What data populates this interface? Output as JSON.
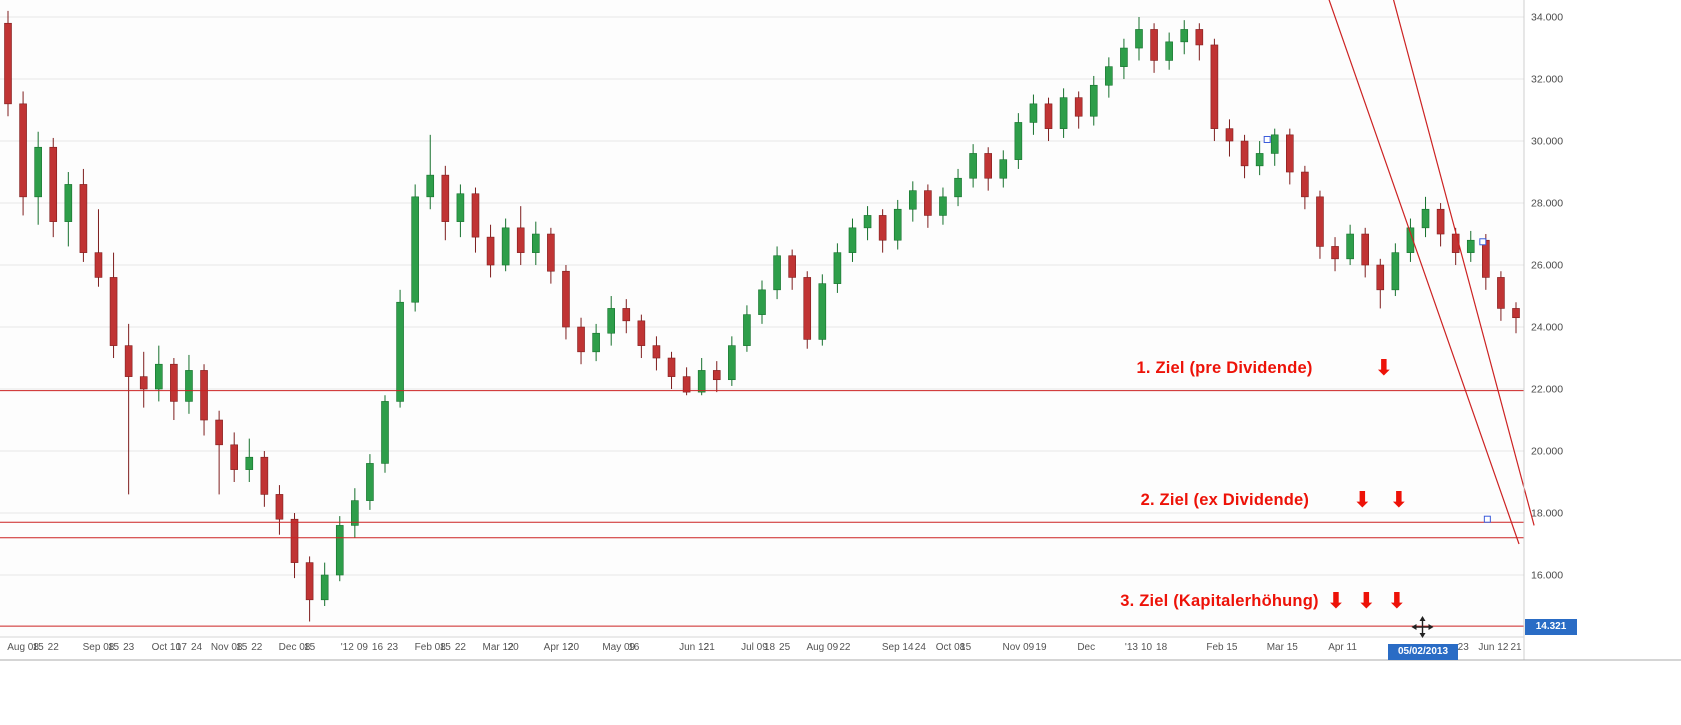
{
  "icons": {
    "down_arrow": "⬇"
  },
  "chart_data": {
    "type": "candlestick",
    "title": "",
    "ylim": [
      14.0,
      34.55
    ],
    "grid": "horizontal",
    "y_axis_side": "right",
    "y_ticks": [
      {
        "price": 34,
        "label": "34.000"
      },
      {
        "price": 32,
        "label": "32.000"
      },
      {
        "price": 30,
        "label": "30.000"
      },
      {
        "price": 28,
        "label": "28.000"
      },
      {
        "price": 26,
        "label": "26.000"
      },
      {
        "price": 24,
        "label": "24.000"
      },
      {
        "price": 22,
        "label": "22.000"
      },
      {
        "price": 20,
        "label": "20.000"
      },
      {
        "price": 18,
        "label": "18.000"
      },
      {
        "price": 16,
        "label": "16.000"
      }
    ],
    "x_ticks": [
      {
        "i": 1,
        "label": "Aug 08"
      },
      {
        "i": 2,
        "label": "15"
      },
      {
        "i": 3,
        "label": "22"
      },
      {
        "i": 6,
        "label": "Sep 08"
      },
      {
        "i": 7,
        "label": "15"
      },
      {
        "i": 8,
        "label": "23"
      },
      {
        "i": 10.5,
        "label": "Oct 10"
      },
      {
        "i": 11.5,
        "label": "17"
      },
      {
        "i": 12.5,
        "label": "24"
      },
      {
        "i": 14.5,
        "label": "Nov 08"
      },
      {
        "i": 15.5,
        "label": "15"
      },
      {
        "i": 16.5,
        "label": "22"
      },
      {
        "i": 19,
        "label": "Dec 08"
      },
      {
        "i": 20,
        "label": "15"
      },
      {
        "i": 22.5,
        "label": "'12"
      },
      {
        "i": 23.5,
        "label": "09"
      },
      {
        "i": 24.5,
        "label": "16"
      },
      {
        "i": 25.5,
        "label": "23"
      },
      {
        "i": 28,
        "label": "Feb 08"
      },
      {
        "i": 29,
        "label": "15"
      },
      {
        "i": 30,
        "label": "22"
      },
      {
        "i": 32.5,
        "label": "Mar 12"
      },
      {
        "i": 33.5,
        "label": "20"
      },
      {
        "i": 36.5,
        "label": "Apr 12"
      },
      {
        "i": 37.5,
        "label": "20"
      },
      {
        "i": 40.5,
        "label": "May 09"
      },
      {
        "i": 41.5,
        "label": "16"
      },
      {
        "i": 45.5,
        "label": "Jun 12"
      },
      {
        "i": 46.5,
        "label": "21"
      },
      {
        "i": 49.5,
        "label": "Jul 09"
      },
      {
        "i": 50.5,
        "label": "18"
      },
      {
        "i": 51.5,
        "label": "25"
      },
      {
        "i": 54,
        "label": "Aug 09"
      },
      {
        "i": 55.5,
        "label": "22"
      },
      {
        "i": 59,
        "label": "Sep 14"
      },
      {
        "i": 60.5,
        "label": "24"
      },
      {
        "i": 62.5,
        "label": "Oct 08"
      },
      {
        "i": 63.5,
        "label": "15"
      },
      {
        "i": 67,
        "label": "Nov 09"
      },
      {
        "i": 68.5,
        "label": "19"
      },
      {
        "i": 71.5,
        "label": "Dec"
      },
      {
        "i": 74.5,
        "label": "'13"
      },
      {
        "i": 75.5,
        "label": "10"
      },
      {
        "i": 76.5,
        "label": "18"
      },
      {
        "i": 80.5,
        "label": "Feb 15"
      },
      {
        "i": 84.5,
        "label": "Mar 15"
      },
      {
        "i": 88.5,
        "label": "Apr 11"
      },
      {
        "i": 96.5,
        "label": "23"
      },
      {
        "i": 98.5,
        "label": "Jun 12"
      },
      {
        "i": 100,
        "label": "21"
      }
    ],
    "candle_format": "[open, high, low, close], weekly, Aug 2011 - Jun 2013",
    "candles": [
      [
        33.8,
        34.2,
        30.8,
        31.2
      ],
      [
        31.2,
        31.6,
        27.6,
        28.2
      ],
      [
        28.2,
        30.3,
        27.3,
        29.8
      ],
      [
        29.8,
        30.1,
        26.9,
        27.4
      ],
      [
        27.4,
        29.0,
        26.6,
        28.6
      ],
      [
        28.6,
        29.1,
        26.1,
        26.4
      ],
      [
        26.4,
        27.8,
        25.3,
        25.6
      ],
      [
        25.6,
        26.4,
        23.0,
        23.4
      ],
      [
        23.4,
        24.1,
        18.6,
        22.4
      ],
      [
        22.4,
        23.2,
        21.4,
        22.0
      ],
      [
        22.0,
        23.4,
        21.6,
        22.8
      ],
      [
        22.8,
        23.0,
        21.0,
        21.6
      ],
      [
        21.6,
        23.1,
        21.2,
        22.6
      ],
      [
        22.6,
        22.8,
        20.5,
        21.0
      ],
      [
        21.0,
        21.3,
        18.6,
        20.2
      ],
      [
        20.2,
        20.6,
        19.0,
        19.4
      ],
      [
        19.4,
        20.4,
        19.0,
        19.8
      ],
      [
        19.8,
        20.0,
        18.2,
        18.6
      ],
      [
        18.6,
        18.9,
        17.3,
        17.8
      ],
      [
        17.8,
        18.0,
        15.9,
        16.4
      ],
      [
        16.4,
        16.6,
        14.5,
        15.2
      ],
      [
        15.2,
        16.4,
        15.0,
        16.0
      ],
      [
        16.0,
        17.9,
        15.8,
        17.6
      ],
      [
        17.6,
        18.8,
        17.2,
        18.4
      ],
      [
        18.4,
        19.9,
        18.1,
        19.6
      ],
      [
        19.6,
        21.8,
        19.3,
        21.6
      ],
      [
        21.6,
        25.2,
        21.4,
        24.8
      ],
      [
        24.8,
        28.6,
        24.5,
        28.2
      ],
      [
        28.2,
        30.2,
        27.8,
        28.9
      ],
      [
        28.9,
        29.2,
        26.8,
        27.4
      ],
      [
        27.4,
        28.6,
        26.9,
        28.3
      ],
      [
        28.3,
        28.5,
        26.4,
        26.9
      ],
      [
        26.9,
        27.3,
        25.6,
        26.0
      ],
      [
        26.0,
        27.5,
        25.8,
        27.2
      ],
      [
        27.2,
        27.9,
        26.0,
        26.4
      ],
      [
        26.4,
        27.4,
        26.0,
        27.0
      ],
      [
        27.0,
        27.2,
        25.4,
        25.8
      ],
      [
        25.8,
        26.0,
        23.6,
        24.0
      ],
      [
        24.0,
        24.3,
        22.8,
        23.2
      ],
      [
        23.2,
        24.1,
        22.9,
        23.8
      ],
      [
        23.8,
        25.0,
        23.4,
        24.6
      ],
      [
        24.6,
        24.9,
        23.8,
        24.2
      ],
      [
        24.2,
        24.4,
        23.0,
        23.4
      ],
      [
        23.4,
        23.7,
        22.6,
        23.0
      ],
      [
        23.0,
        23.2,
        22.0,
        22.4
      ],
      [
        22.4,
        22.7,
        21.8,
        21.9
      ],
      [
        21.9,
        23.0,
        21.8,
        22.6
      ],
      [
        22.6,
        22.9,
        21.9,
        22.3
      ],
      [
        22.3,
        23.7,
        22.1,
        23.4
      ],
      [
        23.4,
        24.7,
        23.2,
        24.4
      ],
      [
        24.4,
        25.5,
        24.1,
        25.2
      ],
      [
        25.2,
        26.6,
        24.9,
        26.3
      ],
      [
        26.3,
        26.5,
        25.2,
        25.6
      ],
      [
        25.6,
        25.8,
        23.3,
        23.6
      ],
      [
        23.6,
        25.7,
        23.4,
        25.4
      ],
      [
        25.4,
        26.7,
        25.1,
        26.4
      ],
      [
        26.4,
        27.5,
        26.1,
        27.2
      ],
      [
        27.2,
        27.9,
        26.8,
        27.6
      ],
      [
        27.6,
        27.8,
        26.4,
        26.8
      ],
      [
        26.8,
        28.1,
        26.5,
        27.8
      ],
      [
        27.8,
        28.7,
        27.4,
        28.4
      ],
      [
        28.4,
        28.6,
        27.2,
        27.6
      ],
      [
        27.6,
        28.5,
        27.3,
        28.2
      ],
      [
        28.2,
        29.1,
        27.9,
        28.8
      ],
      [
        28.8,
        29.9,
        28.5,
        29.6
      ],
      [
        29.6,
        29.8,
        28.4,
        28.8
      ],
      [
        28.8,
        29.7,
        28.5,
        29.4
      ],
      [
        29.4,
        30.9,
        29.1,
        30.6
      ],
      [
        30.6,
        31.5,
        30.2,
        31.2
      ],
      [
        31.2,
        31.4,
        30.0,
        30.4
      ],
      [
        30.4,
        31.7,
        30.1,
        31.4
      ],
      [
        31.4,
        31.6,
        30.4,
        30.8
      ],
      [
        30.8,
        32.1,
        30.5,
        31.8
      ],
      [
        31.8,
        32.7,
        31.4,
        32.4
      ],
      [
        32.4,
        33.3,
        32.0,
        33.0
      ],
      [
        33.0,
        34.0,
        32.6,
        33.6
      ],
      [
        33.6,
        33.8,
        32.2,
        32.6
      ],
      [
        32.6,
        33.5,
        32.3,
        33.2
      ],
      [
        33.2,
        33.9,
        32.8,
        33.6
      ],
      [
        33.6,
        33.8,
        32.6,
        33.1
      ],
      [
        33.1,
        33.3,
        30.0,
        30.4
      ],
      [
        30.4,
        30.7,
        29.5,
        30.0
      ],
      [
        30.0,
        30.2,
        28.8,
        29.2
      ],
      [
        29.2,
        30.0,
        28.9,
        29.6
      ],
      [
        29.6,
        30.4,
        29.2,
        30.2
      ],
      [
        30.2,
        30.4,
        28.6,
        29.0
      ],
      [
        29.0,
        29.2,
        27.8,
        28.2
      ],
      [
        28.2,
        28.4,
        26.2,
        26.6
      ],
      [
        26.6,
        26.9,
        25.8,
        26.2
      ],
      [
        26.2,
        27.3,
        26.0,
        27.0
      ],
      [
        27.0,
        27.2,
        25.6,
        26.0
      ],
      [
        26.0,
        26.2,
        24.6,
        25.2
      ],
      [
        25.2,
        26.7,
        25.0,
        26.4
      ],
      [
        26.4,
        27.5,
        26.1,
        27.2
      ],
      [
        27.2,
        28.2,
        26.9,
        27.8
      ],
      [
        27.8,
        28.0,
        26.6,
        27.0
      ],
      [
        27.0,
        27.2,
        26.0,
        26.4
      ],
      [
        26.4,
        27.1,
        26.1,
        26.8
      ],
      [
        26.8,
        27.0,
        25.2,
        25.6
      ],
      [
        25.6,
        25.8,
        24.2,
        24.6
      ],
      [
        24.6,
        24.8,
        23.8,
        24.3
      ]
    ],
    "horizontal_lines": [
      {
        "name": "target-1-line",
        "price": 21.95
      },
      {
        "name": "target-2-line-upper",
        "price": 17.7
      },
      {
        "name": "target-2-line-lower",
        "price": 17.2
      },
      {
        "name": "target-3-line",
        "price": 14.35
      }
    ],
    "trend_channel": [
      {
        "i1": 87.5,
        "p1": 34.7,
        "i2": 100.2,
        "p2": 17.0
      },
      {
        "i1": 91.8,
        "p1": 34.7,
        "i2": 101.2,
        "p2": 17.6
      }
    ],
    "drawing_handles": [
      {
        "i": 83.5,
        "price": 30.05
      },
      {
        "i": 97.8,
        "price": 26.75
      },
      {
        "i": 98.1,
        "price": 17.8
      }
    ],
    "annotations": {
      "targets": [
        {
          "label": "1. Ziel (pre Dividende)",
          "price": 21.95,
          "arrows": 1
        },
        {
          "label": "2. Ziel (ex Dividende)",
          "price": 17.7,
          "arrows": 2
        },
        {
          "label": "3. Ziel (Kapitalerhöhung)",
          "price": 14.35,
          "arrows": 3
        }
      ]
    },
    "cursor": {
      "date_label": "05/02/2013",
      "price_label": "14.321",
      "i": 93.8,
      "price": 14.321
    },
    "colors": {
      "up": "#2e9e4a",
      "up_edge": "#15702c",
      "down": "#c03434",
      "down_edge": "#7e1d1d",
      "drawing_line": "#cc2222",
      "grid": "#e6e6e6",
      "axis_text": "#4a4a4a",
      "tag_bg": "#2a6cc5",
      "annotation": "#ed1208",
      "handle_edge": "#3b5bdb",
      "plot_bg": "#fdfdfd"
    }
  }
}
